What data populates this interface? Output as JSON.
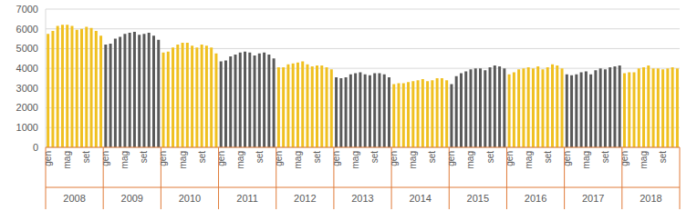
{
  "chart_data": {
    "type": "bar",
    "categories": [
      "gen",
      null,
      null,
      null,
      "mag",
      null,
      null,
      null,
      "set",
      null,
      null,
      null,
      "gen",
      null,
      null,
      null,
      "mag",
      null,
      null,
      null,
      "set",
      null,
      null,
      null,
      "gen",
      null,
      null,
      null,
      "mag",
      null,
      null,
      null,
      "set",
      null,
      null,
      null,
      "gen",
      null,
      null,
      null,
      "mag",
      null,
      null,
      null,
      "set",
      null,
      null,
      null,
      "gen",
      null,
      null,
      null,
      "mag",
      null,
      null,
      null,
      "set",
      null,
      null,
      null,
      "gen",
      null,
      null,
      null,
      "mag",
      null,
      null,
      null,
      "set",
      null,
      null,
      null,
      "gen",
      null,
      null,
      null,
      "mag",
      null,
      null,
      null,
      "set",
      null,
      null,
      null,
      "gen",
      null,
      null,
      null,
      "mag",
      null,
      null,
      null,
      "set",
      null,
      null,
      null,
      "gen",
      null,
      null,
      null,
      "mag",
      null,
      null,
      null,
      "set",
      null,
      null,
      null,
      "gen",
      null,
      null,
      null,
      "mag",
      null,
      null,
      null,
      "set",
      null,
      null,
      null,
      "gen",
      null,
      null,
      null,
      "mag",
      null,
      null,
      null,
      "set",
      null,
      null,
      null
    ],
    "year_labels": [
      "2008",
      "2009",
      "2010",
      "2011",
      "2012",
      "2013",
      "2014",
      "2015",
      "2016",
      "2017",
      "2018"
    ],
    "values": [
      5750,
      5900,
      6150,
      6200,
      6200,
      6150,
      5950,
      6000,
      6100,
      6050,
      5900,
      5650,
      5200,
      5250,
      5500,
      5600,
      5750,
      5800,
      5850,
      5700,
      5750,
      5800,
      5650,
      5450,
      4800,
      4850,
      5050,
      5200,
      5300,
      5300,
      5150,
      5050,
      5200,
      5150,
      5050,
      4750,
      4350,
      4400,
      4600,
      4700,
      4800,
      4850,
      4800,
      4650,
      4750,
      4800,
      4700,
      4500,
      4050,
      4050,
      4200,
      4250,
      4300,
      4350,
      4200,
      4100,
      4150,
      4150,
      4050,
      3950,
      3550,
      3500,
      3550,
      3700,
      3750,
      3800,
      3700,
      3650,
      3750,
      3750,
      3700,
      3550,
      3200,
      3250,
      3250,
      3300,
      3350,
      3400,
      3450,
      3350,
      3400,
      3500,
      3500,
      3400,
      3200,
      3600,
      3750,
      3850,
      3950,
      4000,
      4000,
      3900,
      4050,
      4150,
      4100,
      4000,
      3700,
      3800,
      3950,
      4000,
      4050,
      4000,
      4100,
      3950,
      4050,
      4200,
      4150,
      4000,
      3700,
      3650,
      3700,
      3800,
      3850,
      3700,
      3900,
      4000,
      3950,
      4050,
      4100,
      4150,
      3750,
      3800,
      3800,
      4000,
      4050,
      4150,
      4000,
      4000,
      3950,
      4000,
      4050,
      4000
    ],
    "colors": [
      "#f0c020",
      "#f0c020",
      "#f0c020",
      "#f0c020",
      "#f0c020",
      "#f0c020",
      "#f0c020",
      "#f0c020",
      "#f0c020",
      "#f0c020",
      "#f0c020",
      "#f0c020",
      "#595959",
      "#595959",
      "#595959",
      "#595959",
      "#595959",
      "#595959",
      "#595959",
      "#595959",
      "#595959",
      "#595959",
      "#595959",
      "#595959",
      "#f0c020",
      "#f0c020",
      "#f0c020",
      "#f0c020",
      "#f0c020",
      "#f0c020",
      "#f0c020",
      "#f0c020",
      "#f0c020",
      "#f0c020",
      "#f0c020",
      "#f0c020",
      "#595959",
      "#595959",
      "#595959",
      "#595959",
      "#595959",
      "#595959",
      "#595959",
      "#595959",
      "#595959",
      "#595959",
      "#595959",
      "#595959",
      "#f0c020",
      "#f0c020",
      "#f0c020",
      "#f0c020",
      "#f0c020",
      "#f0c020",
      "#f0c020",
      "#f0c020",
      "#f0c020",
      "#f0c020",
      "#f0c020",
      "#f0c020",
      "#595959",
      "#595959",
      "#595959",
      "#595959",
      "#595959",
      "#595959",
      "#595959",
      "#595959",
      "#595959",
      "#595959",
      "#595959",
      "#595959",
      "#f0c020",
      "#f0c020",
      "#f0c020",
      "#f0c020",
      "#f0c020",
      "#f0c020",
      "#f0c020",
      "#f0c020",
      "#f0c020",
      "#f0c020",
      "#f0c020",
      "#f0c020",
      "#595959",
      "#595959",
      "#595959",
      "#595959",
      "#595959",
      "#595959",
      "#595959",
      "#595959",
      "#595959",
      "#595959",
      "#595959",
      "#595959",
      "#f0c020",
      "#f0c020",
      "#f0c020",
      "#f0c020",
      "#f0c020",
      "#f0c020",
      "#f0c020",
      "#f0c020",
      "#f0c020",
      "#f0c020",
      "#f0c020",
      "#f0c020",
      "#595959",
      "#595959",
      "#595959",
      "#595959",
      "#595959",
      "#595959",
      "#595959",
      "#595959",
      "#595959",
      "#595959",
      "#595959",
      "#595959",
      "#f0c020",
      "#f0c020",
      "#f0c020",
      "#f0c020",
      "#f0c020",
      "#f0c020",
      "#f0c020",
      "#f0c020",
      "#f0c020",
      "#f0c020",
      "#f0c020",
      "#f0c020"
    ],
    "ylim": [
      0,
      7000
    ],
    "yticks": [
      0,
      1000,
      2000,
      3000,
      4000,
      5000,
      6000,
      7000
    ],
    "grid": true
  }
}
